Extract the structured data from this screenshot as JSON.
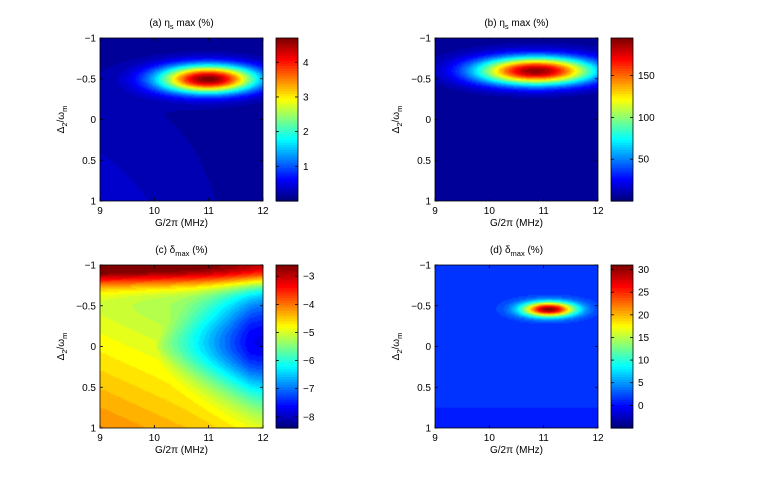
{
  "colormap": "jet",
  "colors": {
    "background": "#ffffff",
    "axis": "#000000"
  },
  "chart_data": [
    {
      "type": "heatmap",
      "title_prefix": "(a) η",
      "title_sub": "s",
      "title_suffix": " max (%)",
      "xlabel": "G/2π (MHz)",
      "ylabel_main": "Δ",
      "ylabel_sub": "2",
      "ylabel_suffix": "/ω",
      "ylabel_sub2": "m",
      "xlim": [
        9,
        12
      ],
      "ylim": [
        -1,
        1
      ],
      "y_direction": "top-to-bottom increasing",
      "x_ticks": [
        "9",
        "10",
        "11",
        "12"
      ],
      "y_ticks": [
        "−1",
        "−0.5",
        "0",
        "0.5",
        "1"
      ],
      "colorbar_range": [
        0.0,
        4.7
      ],
      "colorbar_ticks": [
        {
          "value": 1,
          "label": "1"
        },
        {
          "value": 2,
          "label": "2"
        },
        {
          "value": 3,
          "label": "3"
        },
        {
          "value": 4,
          "label": "4"
        }
      ],
      "peak": {
        "x": 11.0,
        "y": -0.5,
        "value": 4.6
      },
      "field": "peak_ellipse"
    },
    {
      "type": "heatmap",
      "title_prefix": "(b) η",
      "title_sub": "s",
      "title_suffix": " max (%)",
      "xlabel": "G/2π (MHz)",
      "ylabel_main": "Δ",
      "ylabel_sub": "2",
      "ylabel_suffix": "/ω",
      "ylabel_sub2": "m",
      "xlim": [
        9,
        12
      ],
      "ylim": [
        -1,
        1
      ],
      "y_direction": "top-to-bottom increasing",
      "x_ticks": [
        "9",
        "10",
        "11",
        "12"
      ],
      "y_ticks": [
        "−1",
        "−0.5",
        "0",
        "0.5",
        "1"
      ],
      "colorbar_range": [
        0,
        195
      ],
      "colorbar_ticks": [
        {
          "value": 50,
          "label": "50"
        },
        {
          "value": 100,
          "label": "100"
        },
        {
          "value": 150,
          "label": "150"
        }
      ],
      "peak": {
        "x": 10.85,
        "y": -0.6,
        "value": 190
      },
      "field": "peak_ellipse_wide"
    },
    {
      "type": "heatmap",
      "title_prefix": "(c) δ",
      "title_sub": "max",
      "title_suffix": " (%)",
      "xlabel": "G/2π (MHz)",
      "ylabel_main": "Δ",
      "ylabel_sub": "2",
      "ylabel_suffix": "/ω",
      "ylabel_sub2": "m",
      "xlim": [
        9,
        12
      ],
      "ylim": [
        -1,
        1
      ],
      "y_direction": "top-to-bottom increasing",
      "x_ticks": [
        "9",
        "10",
        "11",
        "12"
      ],
      "y_ticks": [
        "−1",
        "−0.5",
        "0",
        "0.5",
        "1"
      ],
      "colorbar_range": [
        -8.4,
        -2.6
      ],
      "colorbar_ticks": [
        {
          "value": -8,
          "label": "−8"
        },
        {
          "value": -7,
          "label": "−7"
        },
        {
          "value": -6,
          "label": "−6"
        },
        {
          "value": -5,
          "label": "−5"
        },
        {
          "value": -4,
          "label": "−4"
        },
        {
          "value": -3,
          "label": "−3"
        }
      ],
      "min_point": {
        "x": 12.0,
        "y": 0.0,
        "value": -8.3
      },
      "max_point": {
        "x": 9.0,
        "y": -1.0,
        "value": -2.7
      },
      "field": "gradient_tongue"
    },
    {
      "type": "heatmap",
      "title_prefix": "(d) δ",
      "title_sub": "max",
      "title_suffix": " (%)",
      "xlabel": "G/2π (MHz)",
      "ylabel_main": "Δ",
      "ylabel_sub": "2",
      "ylabel_suffix": "/ω",
      "ylabel_sub2": "m",
      "xlim": [
        9,
        12
      ],
      "ylim": [
        -1,
        1
      ],
      "y_direction": "top-to-bottom increasing",
      "x_ticks": [
        "9",
        "10",
        "11",
        "12"
      ],
      "y_ticks": [
        "−1",
        "−0.5",
        "0",
        "0.5",
        "1"
      ],
      "colorbar_range": [
        -5,
        31
      ],
      "colorbar_ticks": [
        {
          "value": 0,
          "label": "0"
        },
        {
          "value": 5,
          "label": "5"
        },
        {
          "value": 10,
          "label": "10"
        },
        {
          "value": 15,
          "label": "15"
        },
        {
          "value": 20,
          "label": "20"
        },
        {
          "value": 25,
          "label": "25"
        },
        {
          "value": 30,
          "label": "30"
        }
      ],
      "peak": {
        "x": 11.1,
        "y": -0.46,
        "value": 30
      },
      "field": "peak_small"
    }
  ]
}
